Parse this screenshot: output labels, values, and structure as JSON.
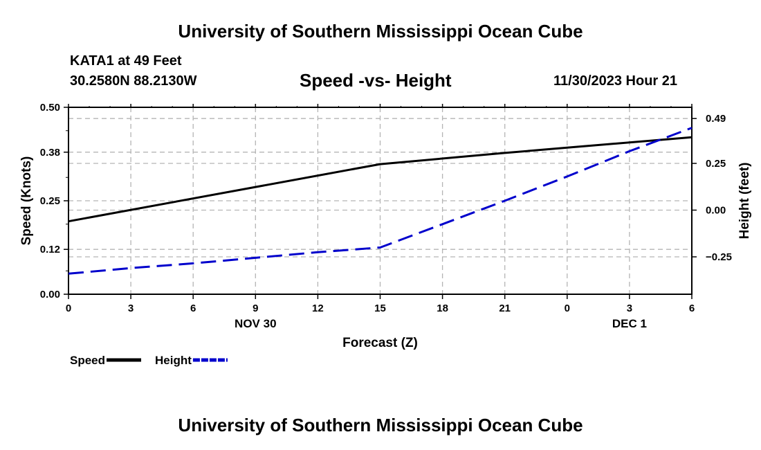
{
  "header": {
    "title": "University of Southern Mississippi Ocean Cube",
    "station": "KATA1 at 49 Feet",
    "coordinates": "30.2580N  88.2130W",
    "chart_title": "Speed -vs- Height",
    "datetime": "11/30/2023 Hour 21"
  },
  "footer": {
    "title": "University of Southern Mississippi Ocean Cube"
  },
  "chart_data": {
    "type": "line",
    "title": "Speed -vs- Height",
    "xlabel": "Forecast (Z)",
    "ylabel": "Speed (Knots)",
    "y2label": "Height (feet)",
    "x": [
      0,
      3,
      6,
      9,
      12,
      15,
      18,
      21,
      24,
      27,
      30
    ],
    "xtick_labels": [
      "0",
      "3",
      "6",
      "9",
      "12",
      "15",
      "18",
      "21",
      "0",
      "3",
      "6"
    ],
    "date_labels": [
      {
        "x": 9,
        "label": "NOV 30"
      },
      {
        "x": 27,
        "label": "DEC 1"
      }
    ],
    "xlim": [
      0,
      30
    ],
    "ylim": [
      0,
      0.5
    ],
    "yticks": [
      0.0,
      0.12,
      0.25,
      0.38,
      0.5
    ],
    "ytick_labels": [
      "0.00",
      "0.12",
      "0.25",
      "0.38",
      "0.50"
    ],
    "y2lim": [
      -0.45,
      0.55
    ],
    "y2ticks": [
      -0.25,
      0.0,
      0.25,
      0.49
    ],
    "y2tick_labels": [
      "−0.25",
      "0.00",
      "0.25",
      "0.49"
    ],
    "grid": true,
    "series": [
      {
        "name": "Speed",
        "axis": "left",
        "color": "#000000",
        "style": "solid",
        "points": [
          [
            0,
            0.195
          ],
          [
            15,
            0.348
          ],
          [
            21,
            0.378
          ],
          [
            24,
            0.392
          ],
          [
            30,
            0.42
          ]
        ]
      },
      {
        "name": "Height",
        "axis": "right",
        "color": "#0000cc",
        "style": "dashed",
        "points": [
          [
            0,
            -0.34
          ],
          [
            3,
            -0.31
          ],
          [
            6,
            -0.285
          ],
          [
            9,
            -0.255
          ],
          [
            12,
            -0.225
          ],
          [
            15,
            -0.2
          ],
          [
            18,
            -0.075
          ],
          [
            21,
            0.05
          ],
          [
            24,
            0.18
          ],
          [
            27,
            0.315
          ],
          [
            30,
            0.44
          ]
        ]
      }
    ],
    "legend": [
      {
        "label": "Speed",
        "color": "#000000",
        "style": "solid"
      },
      {
        "label": "Height",
        "color": "#0000cc",
        "style": "dashed"
      }
    ]
  }
}
